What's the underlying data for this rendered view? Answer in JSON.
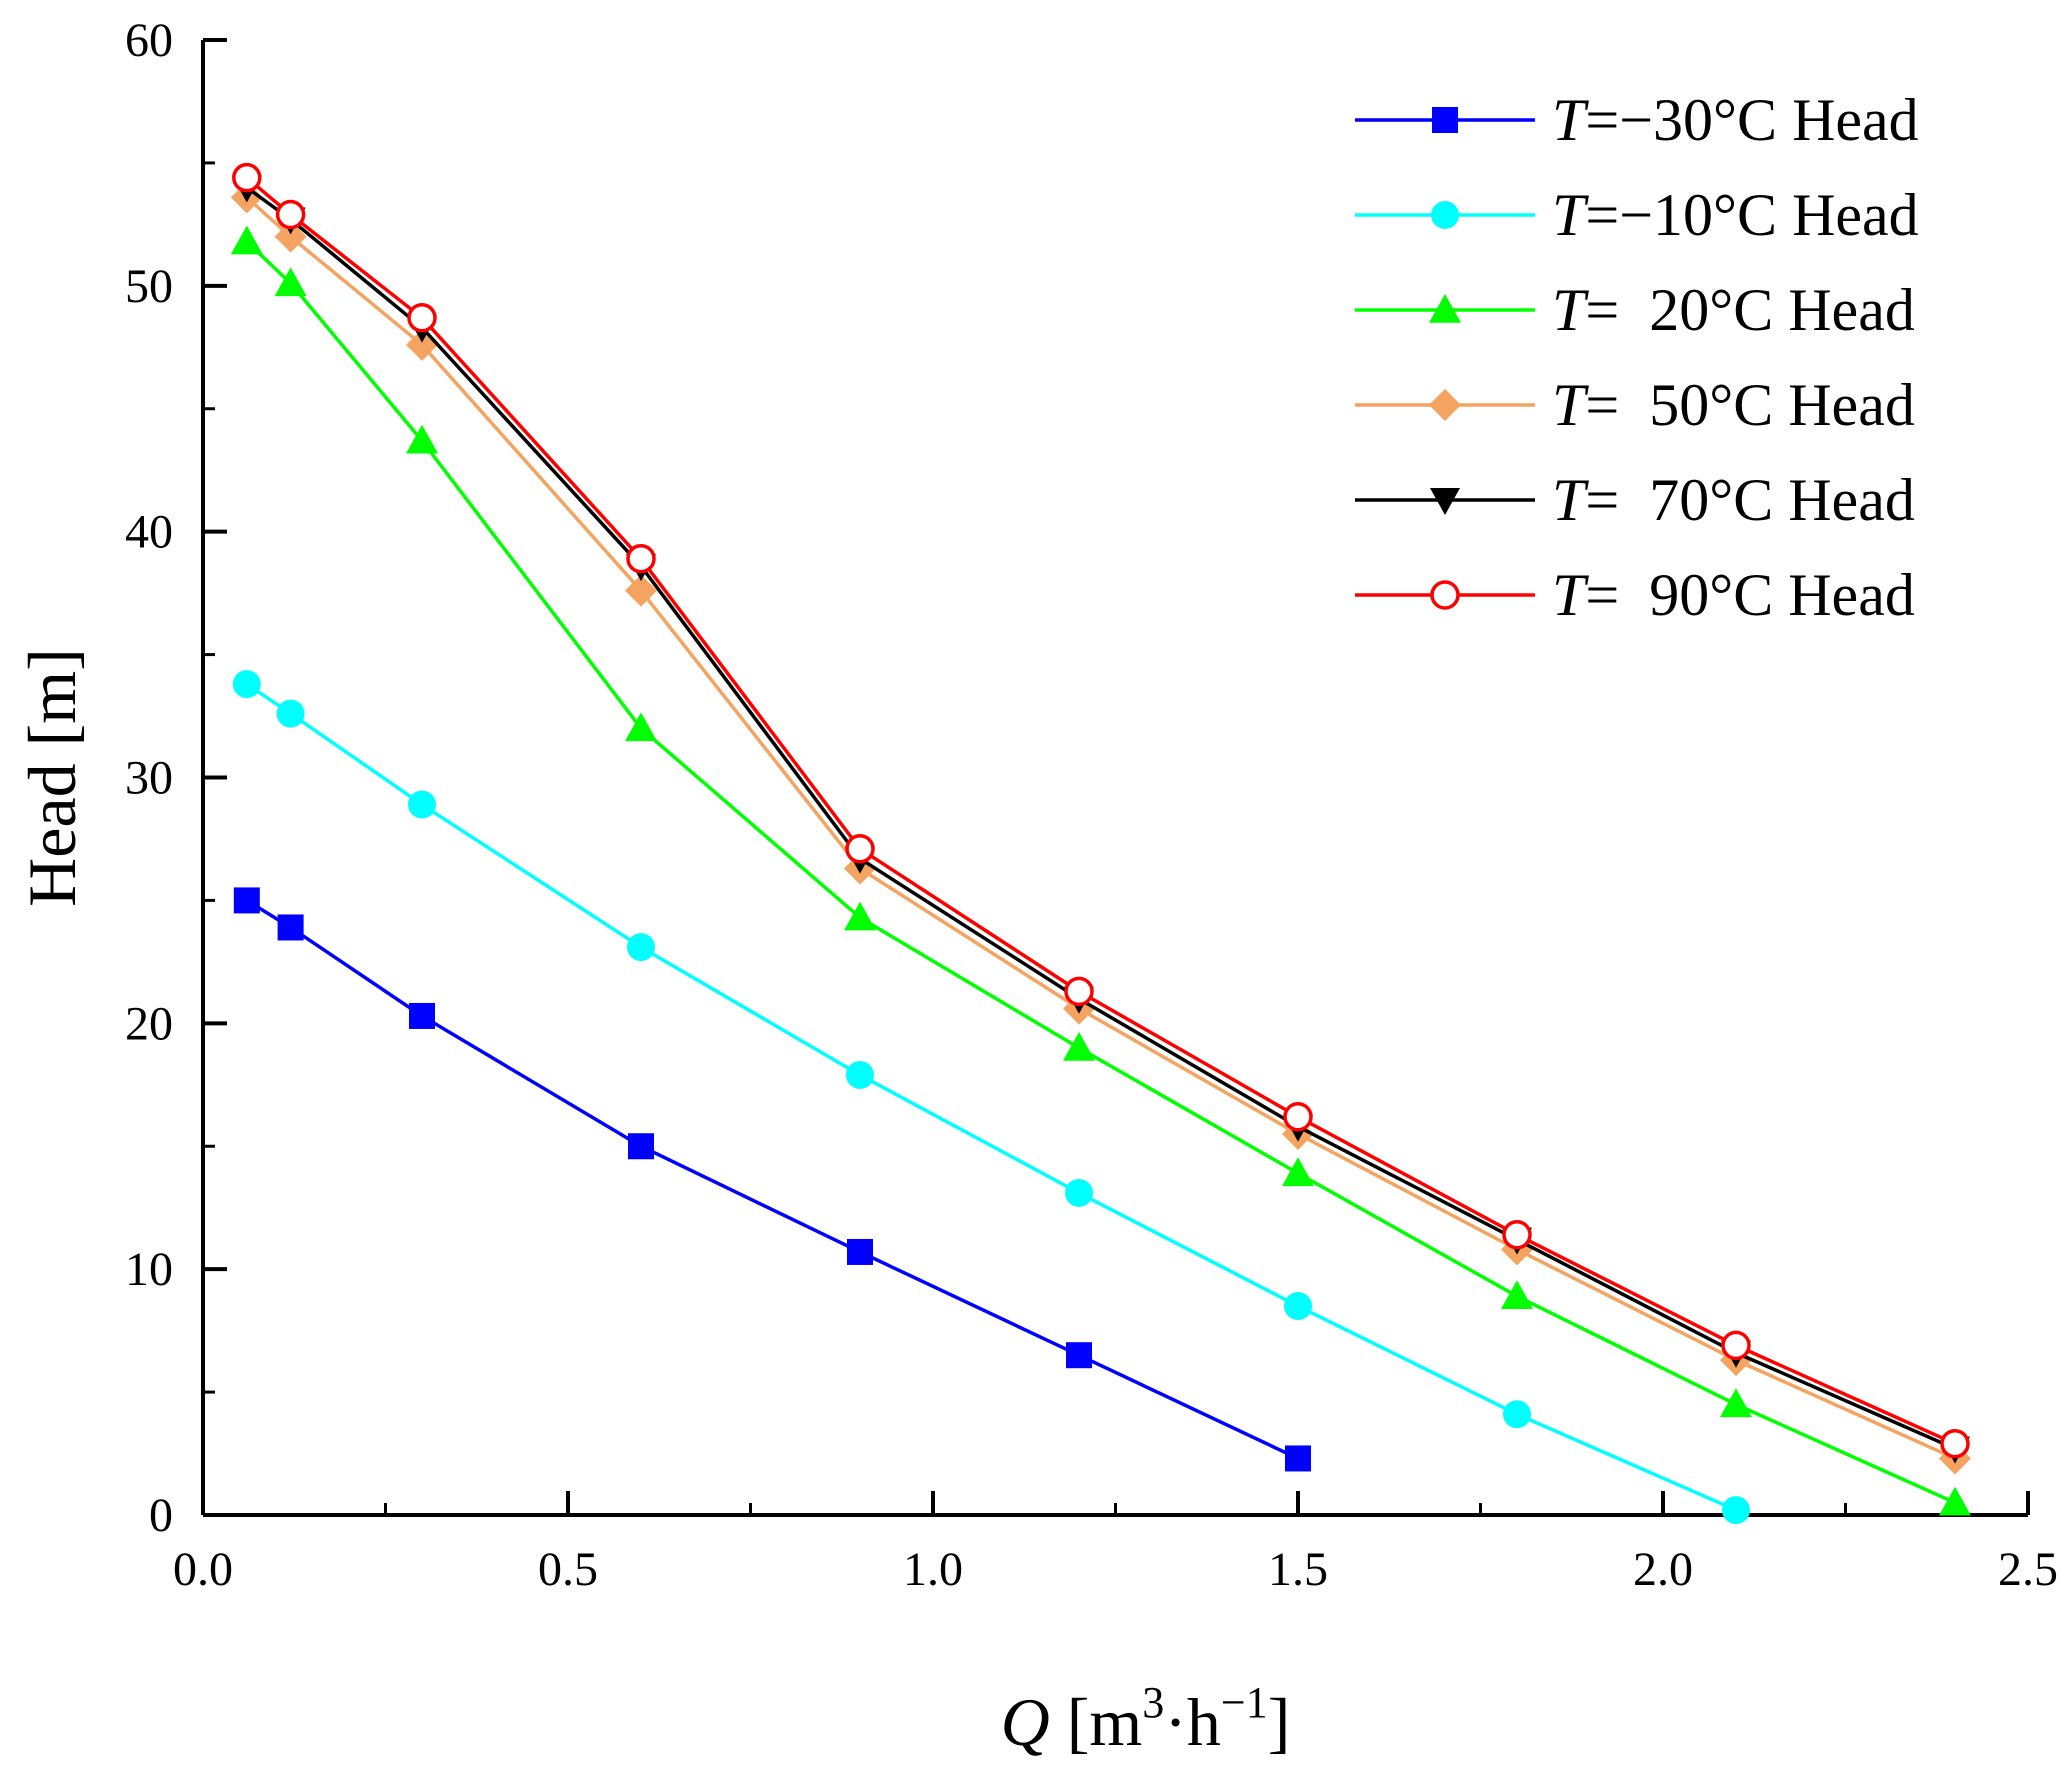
{
  "chart_data": {
    "type": "line",
    "title": "",
    "xlabel": {
      "var": "Q",
      "text": " [m",
      "sup1": "3",
      "mid": "·h",
      "sup2": "−1",
      "end": "]"
    },
    "ylabel": "Head [m]",
    "xlim": [
      0,
      2.5
    ],
    "ylim": [
      0,
      60
    ],
    "xticks": [
      0.0,
      0.5,
      1.0,
      1.5,
      2.0,
      2.5
    ],
    "xtick_labels": [
      "0.0",
      "0.5",
      "1.0",
      "1.5",
      "2.0",
      "2.5"
    ],
    "yticks": [
      0,
      10,
      20,
      30,
      40,
      50,
      60
    ],
    "ytick_labels": [
      "0",
      "10",
      "20",
      "30",
      "40",
      "50",
      "60"
    ],
    "grid": false,
    "legend_position": "top-right",
    "series": [
      {
        "name": "T=−30°C Head",
        "var": "T",
        "label": "=−30°C Head",
        "color": "#0000ff",
        "marker": "square",
        "x": [
          0.06,
          0.12,
          0.3,
          0.6,
          0.9,
          1.2,
          1.5
        ],
        "y": [
          25.0,
          23.9,
          20.3,
          15.0,
          10.7,
          6.5,
          2.3
        ]
      },
      {
        "name": "T=−10°C Head",
        "var": "T",
        "label": "=−10°C Head",
        "color": "#00ffff",
        "marker": "circle",
        "x": [
          0.06,
          0.12,
          0.3,
          0.6,
          0.9,
          1.2,
          1.5,
          1.8,
          2.1
        ],
        "y": [
          33.8,
          32.6,
          28.9,
          23.1,
          17.9,
          13.1,
          8.5,
          4.1,
          0.2
        ]
      },
      {
        "name": "T= 20°C Head",
        "var": "T",
        "label": "=  20°C Head",
        "color": "#00ff00",
        "marker": "triangle-up",
        "x": [
          0.06,
          0.12,
          0.3,
          0.6,
          0.9,
          1.2,
          1.5,
          1.8,
          2.1,
          2.4
        ],
        "y": [
          51.8,
          50.1,
          43.7,
          32.0,
          24.3,
          19.0,
          13.9,
          8.9,
          4.5,
          0.5
        ]
      },
      {
        "name": "T= 50°C Head",
        "var": "T",
        "label": "=  50°C Head",
        "color": "#f4a460",
        "marker": "diamond",
        "x": [
          0.06,
          0.12,
          0.3,
          0.6,
          0.9,
          1.2,
          1.5,
          1.8,
          2.1,
          2.4
        ],
        "y": [
          53.6,
          52.0,
          47.6,
          37.6,
          26.3,
          20.6,
          15.5,
          10.8,
          6.3,
          2.3
        ]
      },
      {
        "name": "T= 70°C Head",
        "var": "T",
        "label": "=  70°C Head",
        "color": "#000000",
        "marker": "triangle-down",
        "x": [
          0.06,
          0.12,
          0.3,
          0.6,
          0.9,
          1.2,
          1.5,
          1.8,
          2.1,
          2.4
        ],
        "y": [
          54.0,
          52.7,
          48.3,
          38.6,
          26.7,
          21.0,
          15.8,
          11.2,
          6.6,
          2.7
        ]
      },
      {
        "name": "T= 90°C Head",
        "var": "T",
        "label": "=  90°C Head",
        "color": "#ff0000",
        "marker": "open-circle",
        "x": [
          0.06,
          0.12,
          0.3,
          0.6,
          0.9,
          1.2,
          1.5,
          1.8,
          2.1,
          2.4
        ],
        "y": [
          54.4,
          52.9,
          48.7,
          38.9,
          27.1,
          21.3,
          16.2,
          11.4,
          6.9,
          2.9
        ]
      }
    ]
  }
}
